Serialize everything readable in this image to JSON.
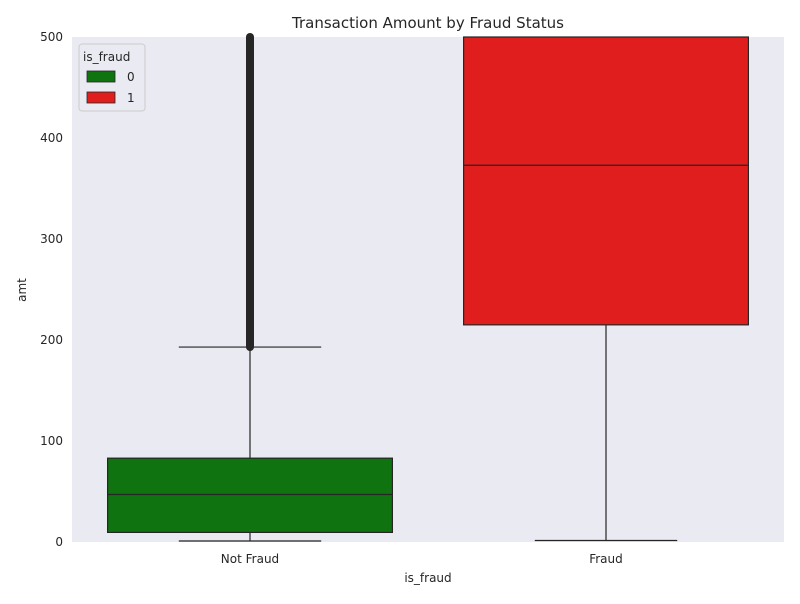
{
  "chart_data": {
    "type": "box",
    "title": "Transaction Amount by Fraud Status",
    "xlabel": "is_fraud",
    "ylabel": "amt",
    "ylim": [
      0,
      500
    ],
    "yticks": [
      0,
      100,
      200,
      300,
      400,
      500
    ],
    "grid": false,
    "background": "#eaeaf2",
    "categories": [
      "Not Fraud",
      "Fraud"
    ],
    "legend": {
      "title": "is_fraud",
      "placement": "upper-left",
      "entries": [
        {
          "label": "0",
          "color": "#0f730f"
        },
        {
          "label": "1",
          "color": "#e01e1e"
        }
      ]
    },
    "boxes": [
      {
        "category": "Not Fraud",
        "hue": "0",
        "color": "#0f730f",
        "whisker_low": 1,
        "q1": 9.5,
        "median": 47,
        "q3": 83,
        "whisker_high": 193,
        "outliers_from": 193,
        "outliers_to": 500
      },
      {
        "category": "Fraud",
        "hue": "1",
        "color": "#e01e1e",
        "whisker_low": 1.5,
        "q1": 215,
        "median": 373,
        "q3": 500,
        "whisker_high": 500,
        "outliers_from": null,
        "outliers_to": null
      }
    ]
  }
}
